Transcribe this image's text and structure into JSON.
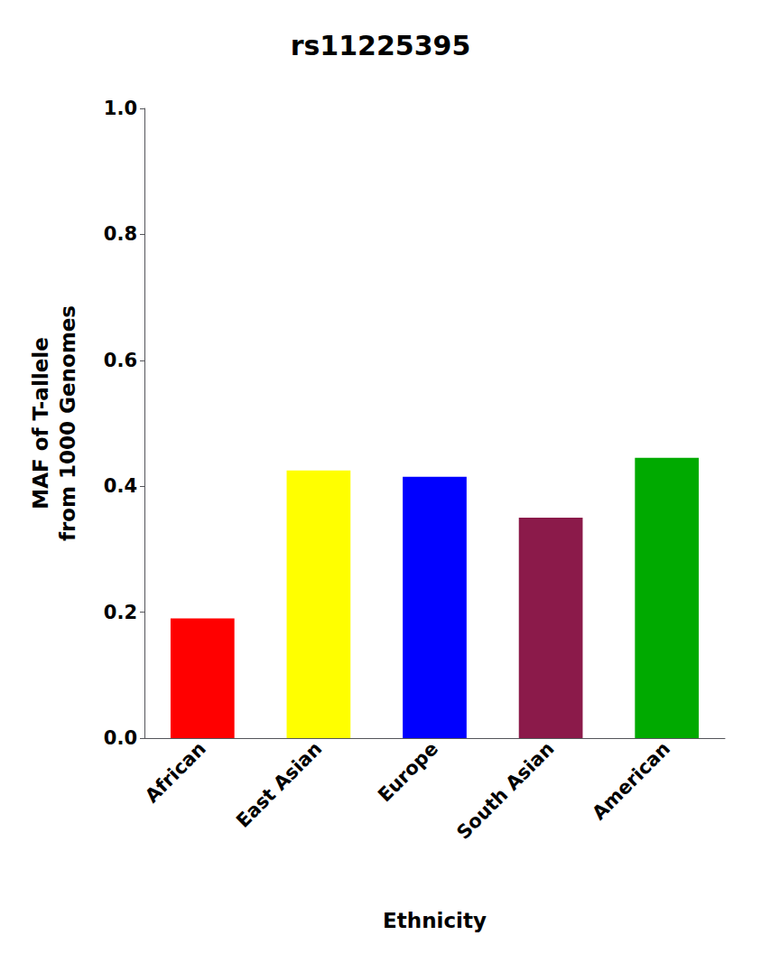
{
  "chart_data": {
    "type": "bar",
    "title": "rs11225395",
    "categories": [
      "African",
      "East Asian",
      "Europe",
      "South Asian",
      "American"
    ],
    "values": [
      0.19,
      0.425,
      0.415,
      0.35,
      0.445
    ],
    "colors": [
      "#ff0000",
      "#ffff00",
      "#0000ff",
      "#8b1a4a",
      "#00aa00"
    ],
    "ylabel": "MAF of T-allele\nfrom 1000 Genomes",
    "xlabel": "Ethnicity",
    "ylim": [
      0.0,
      1.0
    ],
    "yticks": [
      {
        "value": 0,
        "label": "0.0"
      },
      0.2,
      0.4,
      0.6,
      0.8,
      {
        "value": 1,
        "label": "1.0"
      }
    ],
    "grid": false
  }
}
